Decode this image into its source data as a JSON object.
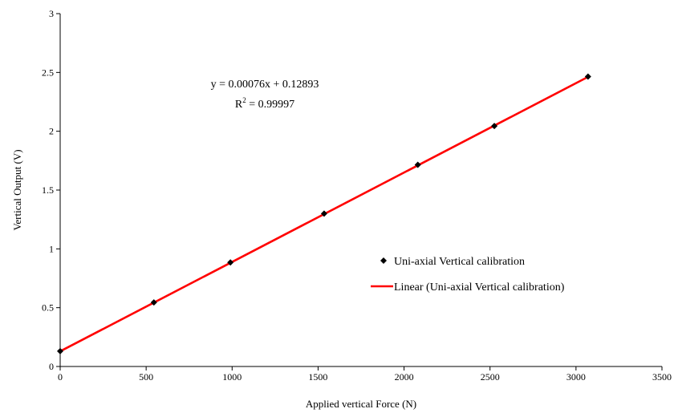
{
  "chart_data": {
    "type": "scatter",
    "xlabel": "Applied vertical Force (N)",
    "ylabel": "Vertical Output (V)",
    "xlim": [
      0,
      3500
    ],
    "ylim": [
      0,
      3
    ],
    "x_ticks": [
      "0",
      "500",
      "1000",
      "1500",
      "2000",
      "2500",
      "3000",
      "3500"
    ],
    "y_ticks": [
      "0",
      "0.5",
      "1",
      "1.5",
      "2",
      "2.5",
      "3"
    ],
    "grid": false,
    "legend_position": "right",
    "series": [
      {
        "name": "Uni-axial Vertical calibration",
        "marker": "diamond",
        "color": "#000000",
        "x": [
          0,
          545,
          990,
          1535,
          2080,
          2525,
          3070
        ],
        "y": [
          0.13,
          0.545,
          0.885,
          1.3,
          1.715,
          2.045,
          2.465
        ]
      },
      {
        "name": "Linear (Uni-axial Vertical calibration)",
        "line": true,
        "color": "#ff0000",
        "slope": 0.00076,
        "intercept": 0.12893,
        "x_range": [
          0,
          3070
        ]
      }
    ],
    "annotation": {
      "equation": "y = 0.00076x + 0.12893",
      "r_label": "R",
      "r_sup": "2",
      "r_value": " = 0.99997"
    }
  }
}
